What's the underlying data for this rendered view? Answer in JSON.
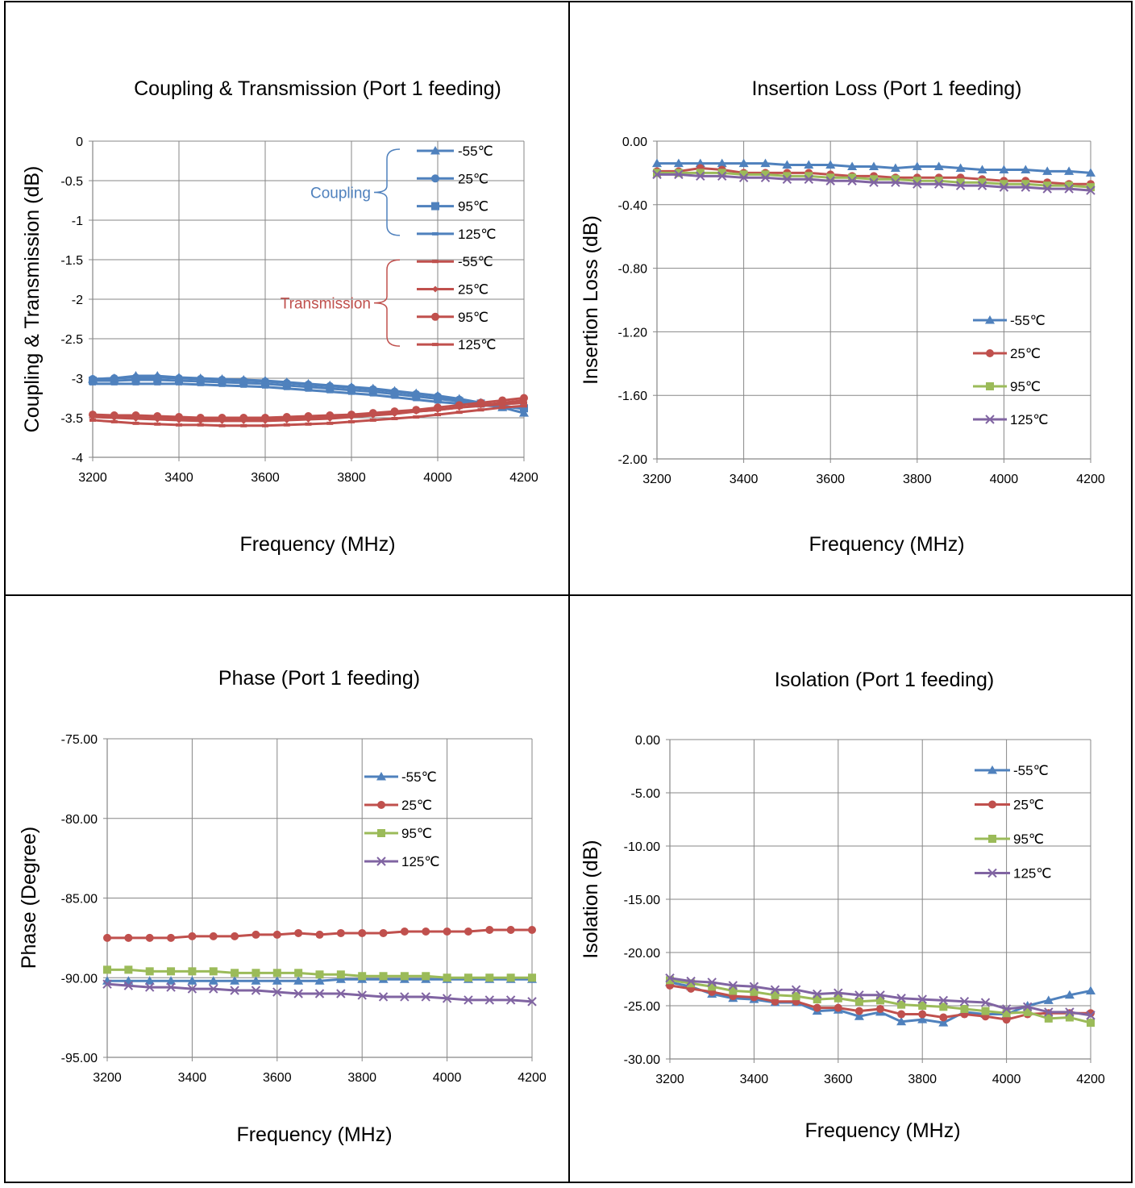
{
  "chart_data": [
    {
      "type": "line",
      "title": "Coupling & Transmission (Port 1 feeding)",
      "xlabel": "Frequency (MHz)",
      "ylabel": "Coupling & Transmission (dB)",
      "xlim": [
        3200,
        4200
      ],
      "ylim": [
        -4,
        0
      ],
      "xticks": [
        3200,
        3400,
        3600,
        3800,
        4000,
        4200
      ],
      "yticks": [
        0,
        -0.5,
        -1,
        -1.5,
        -2,
        -2.5,
        -3,
        -3.5,
        -4
      ],
      "ytick_decimals": -1,
      "grid": true,
      "legend_position": "top-right",
      "x": [
        3200,
        3250,
        3300,
        3350,
        3400,
        3450,
        3500,
        3550,
        3600,
        3650,
        3700,
        3750,
        3800,
        3850,
        3900,
        3950,
        4000,
        4050,
        4100,
        4150,
        4200
      ],
      "legend_groups": [
        {
          "label": "Coupling",
          "color": "#4F81BD",
          "series_indices": [
            0,
            1,
            2,
            3
          ]
        },
        {
          "label": "Transmission",
          "color": "#C0504D",
          "series_indices": [
            4,
            5,
            6,
            7
          ]
        }
      ],
      "series": [
        {
          "name": "-55℃",
          "color": "#4F81BD",
          "marker": "triangle",
          "values": [
            -3.01,
            -3.0,
            -2.97,
            -2.97,
            -2.99,
            -3.0,
            -3.01,
            -3.02,
            -3.03,
            -3.05,
            -3.07,
            -3.09,
            -3.11,
            -3.13,
            -3.16,
            -3.19,
            -3.22,
            -3.26,
            -3.31,
            -3.37,
            -3.44
          ]
        },
        {
          "name": "25℃",
          "color": "#4F81BD",
          "marker": "circle",
          "values": [
            -3.01,
            -3.0,
            -2.99,
            -2.99,
            -3.0,
            -3.01,
            -3.02,
            -3.03,
            -3.04,
            -3.06,
            -3.08,
            -3.1,
            -3.12,
            -3.14,
            -3.17,
            -3.2,
            -3.23,
            -3.27,
            -3.31,
            -3.35,
            -3.39
          ]
        },
        {
          "name": "95℃",
          "color": "#4F81BD",
          "marker": "square",
          "values": [
            -3.03,
            -3.03,
            -3.02,
            -3.02,
            -3.03,
            -3.04,
            -3.05,
            -3.06,
            -3.07,
            -3.09,
            -3.11,
            -3.13,
            -3.15,
            -3.17,
            -3.2,
            -3.23,
            -3.26,
            -3.29,
            -3.32,
            -3.35,
            -3.38
          ]
        },
        {
          "name": "125℃",
          "color": "#4F81BD",
          "marker": "dash",
          "values": [
            -3.07,
            -3.07,
            -3.07,
            -3.07,
            -3.07,
            -3.08,
            -3.09,
            -3.1,
            -3.11,
            -3.13,
            -3.15,
            -3.17,
            -3.19,
            -3.21,
            -3.24,
            -3.27,
            -3.3,
            -3.32,
            -3.34,
            -3.36,
            -3.38
          ]
        },
        {
          "name": "-55℃",
          "color": "#C0504D",
          "marker": "dash",
          "values": [
            -3.53,
            -3.55,
            -3.57,
            -3.58,
            -3.59,
            -3.59,
            -3.6,
            -3.6,
            -3.6,
            -3.59,
            -3.58,
            -3.57,
            -3.55,
            -3.53,
            -3.51,
            -3.49,
            -3.46,
            -3.43,
            -3.4,
            -3.37,
            -3.35
          ]
        },
        {
          "name": "25℃",
          "color": "#C0504D",
          "marker": "diamond",
          "values": [
            -3.49,
            -3.5,
            -3.51,
            -3.52,
            -3.53,
            -3.54,
            -3.54,
            -3.54,
            -3.54,
            -3.53,
            -3.52,
            -3.51,
            -3.49,
            -3.47,
            -3.45,
            -3.42,
            -3.4,
            -3.37,
            -3.34,
            -3.31,
            -3.28
          ]
        },
        {
          "name": "95℃",
          "color": "#C0504D",
          "marker": "circle",
          "values": [
            -3.46,
            -3.47,
            -3.47,
            -3.48,
            -3.49,
            -3.5,
            -3.5,
            -3.5,
            -3.5,
            -3.49,
            -3.48,
            -3.47,
            -3.46,
            -3.44,
            -3.42,
            -3.4,
            -3.37,
            -3.34,
            -3.31,
            -3.28,
            -3.25
          ]
        },
        {
          "name": "125℃",
          "color": "#C0504D",
          "marker": "dash",
          "values": [
            -3.48,
            -3.49,
            -3.49,
            -3.5,
            -3.51,
            -3.51,
            -3.52,
            -3.52,
            -3.52,
            -3.51,
            -3.5,
            -3.49,
            -3.48,
            -3.46,
            -3.44,
            -3.42,
            -3.4,
            -3.37,
            -3.35,
            -3.33,
            -3.31
          ]
        }
      ]
    },
    {
      "type": "line",
      "title": "Insertion Loss (Port 1 feeding)",
      "xlabel": "Frequency (MHz)",
      "ylabel": "Insertion Loss (dB)",
      "xlim": [
        3200,
        4200
      ],
      "ylim": [
        -2,
        0
      ],
      "xticks": [
        3200,
        3400,
        3600,
        3800,
        4000,
        4200
      ],
      "yticks": [
        0,
        -0.4,
        -0.8,
        -1.2,
        -1.6,
        -2
      ],
      "ytick_decimals": 2,
      "grid": true,
      "legend_position": "right",
      "x": [
        3200,
        3250,
        3300,
        3350,
        3400,
        3450,
        3500,
        3550,
        3600,
        3650,
        3700,
        3750,
        3800,
        3850,
        3900,
        3950,
        4000,
        4050,
        4100,
        4150,
        4200
      ],
      "series": [
        {
          "name": "-55℃",
          "color": "#4F81BD",
          "marker": "triangle",
          "values": [
            -0.14,
            -0.14,
            -0.14,
            -0.14,
            -0.14,
            -0.14,
            -0.15,
            -0.15,
            -0.15,
            -0.16,
            -0.16,
            -0.17,
            -0.16,
            -0.16,
            -0.17,
            -0.18,
            -0.18,
            -0.18,
            -0.19,
            -0.19,
            -0.2
          ]
        },
        {
          "name": "25℃",
          "color": "#C0504D",
          "marker": "circle",
          "values": [
            -0.19,
            -0.19,
            -0.17,
            -0.18,
            -0.2,
            -0.2,
            -0.2,
            -0.2,
            -0.21,
            -0.22,
            -0.22,
            -0.23,
            -0.23,
            -0.23,
            -0.23,
            -0.24,
            -0.25,
            -0.25,
            -0.26,
            -0.27,
            -0.27
          ]
        },
        {
          "name": "95℃",
          "color": "#9BBB59",
          "marker": "square",
          "values": [
            -0.2,
            -0.2,
            -0.2,
            -0.2,
            -0.21,
            -0.21,
            -0.22,
            -0.22,
            -0.23,
            -0.23,
            -0.24,
            -0.24,
            -0.25,
            -0.25,
            -0.26,
            -0.26,
            -0.27,
            -0.27,
            -0.28,
            -0.28,
            -0.29
          ]
        },
        {
          "name": "125℃",
          "color": "#8064A2",
          "marker": "x",
          "values": [
            -0.21,
            -0.21,
            -0.22,
            -0.22,
            -0.23,
            -0.23,
            -0.24,
            -0.24,
            -0.25,
            -0.25,
            -0.26,
            -0.26,
            -0.27,
            -0.27,
            -0.28,
            -0.28,
            -0.29,
            -0.29,
            -0.3,
            -0.3,
            -0.31
          ]
        }
      ]
    },
    {
      "type": "line",
      "title": "Phase (Port 1 feeding)",
      "xlabel": "Frequency (MHz)",
      "ylabel": "Phase (Degree)",
      "xlim": [
        3200,
        4200
      ],
      "ylim": [
        -95,
        -75
      ],
      "xticks": [
        3200,
        3400,
        3600,
        3800,
        4000,
        4200
      ],
      "yticks": [
        -75,
        -80,
        -85,
        -90,
        -95
      ],
      "ytick_decimals": 2,
      "grid": true,
      "legend_position": "top-right",
      "x": [
        3200,
        3250,
        3300,
        3350,
        3400,
        3450,
        3500,
        3550,
        3600,
        3650,
        3700,
        3750,
        3800,
        3850,
        3900,
        3950,
        4000,
        4050,
        4100,
        4150,
        4200
      ],
      "series": [
        {
          "name": "-55℃",
          "color": "#4F81BD",
          "marker": "triangle",
          "values": [
            -90.2,
            -90.2,
            -90.2,
            -90.2,
            -90.2,
            -90.2,
            -90.2,
            -90.2,
            -90.2,
            -90.2,
            -90.2,
            -90.1,
            -90.1,
            -90.1,
            -90.1,
            -90.1,
            -90.1,
            -90.1,
            -90.1,
            -90.1,
            -90.1
          ]
        },
        {
          "name": "25℃",
          "color": "#C0504D",
          "marker": "circle",
          "values": [
            -87.5,
            -87.5,
            -87.5,
            -87.5,
            -87.4,
            -87.4,
            -87.4,
            -87.3,
            -87.3,
            -87.2,
            -87.3,
            -87.2,
            -87.2,
            -87.2,
            -87.1,
            -87.1,
            -87.1,
            -87.1,
            -87.0,
            -87.0,
            -87.0
          ]
        },
        {
          "name": "95℃",
          "color": "#9BBB59",
          "marker": "square",
          "values": [
            -89.5,
            -89.5,
            -89.6,
            -89.6,
            -89.6,
            -89.6,
            -89.7,
            -89.7,
            -89.7,
            -89.7,
            -89.8,
            -89.8,
            -89.9,
            -89.9,
            -89.9,
            -89.9,
            -90.0,
            -90.0,
            -90.0,
            -90.0,
            -90.0
          ]
        },
        {
          "name": "125℃",
          "color": "#8064A2",
          "marker": "x",
          "values": [
            -90.4,
            -90.5,
            -90.6,
            -90.6,
            -90.7,
            -90.7,
            -90.8,
            -90.8,
            -90.9,
            -91.0,
            -91.0,
            -91.0,
            -91.1,
            -91.2,
            -91.2,
            -91.2,
            -91.3,
            -91.4,
            -91.4,
            -91.4,
            -91.5
          ]
        }
      ]
    },
    {
      "type": "line",
      "title": "Isolation (Port 1 feeding)",
      "xlabel": "Frequency (MHz)",
      "ylabel": "Isolation (dB)",
      "xlim": [
        3200,
        4200
      ],
      "ylim": [
        -30,
        0
      ],
      "xticks": [
        3200,
        3400,
        3600,
        3800,
        4000,
        4200
      ],
      "yticks": [
        0,
        -5,
        -10,
        -15,
        -20,
        -25,
        -30
      ],
      "ytick_decimals": 2,
      "grid": true,
      "legend_position": "top-right",
      "x": [
        3200,
        3250,
        3300,
        3350,
        3400,
        3450,
        3500,
        3550,
        3600,
        3650,
        3700,
        3750,
        3800,
        3850,
        3900,
        3950,
        4000,
        4050,
        4100,
        4150,
        4200
      ],
      "series": [
        {
          "name": "-55℃",
          "color": "#4F81BD",
          "marker": "triangle",
          "values": [
            -22.8,
            -23.2,
            -23.9,
            -24.3,
            -24.4,
            -24.7,
            -24.7,
            -25.5,
            -25.4,
            -26.0,
            -25.6,
            -26.5,
            -26.3,
            -26.6,
            -25.6,
            -25.8,
            -25.8,
            -25.0,
            -24.5,
            -24.0,
            -23.6
          ]
        },
        {
          "name": "25℃",
          "color": "#C0504D",
          "marker": "circle",
          "values": [
            -23.1,
            -23.4,
            -23.7,
            -24.1,
            -24.2,
            -24.6,
            -24.6,
            -25.2,
            -25.2,
            -25.5,
            -25.3,
            -25.8,
            -25.8,
            -26.1,
            -25.8,
            -26.0,
            -26.3,
            -25.8,
            -25.7,
            -25.7,
            -25.7
          ]
        },
        {
          "name": "95℃",
          "color": "#9BBB59",
          "marker": "square",
          "values": [
            -22.6,
            -22.9,
            -23.2,
            -23.6,
            -23.7,
            -24.0,
            -24.1,
            -24.4,
            -24.3,
            -24.6,
            -24.5,
            -24.9,
            -25.0,
            -25.1,
            -25.3,
            -25.5,
            -25.7,
            -25.6,
            -26.2,
            -26.1,
            -26.6
          ]
        },
        {
          "name": "125℃",
          "color": "#8064A2",
          "marker": "x",
          "values": [
            -22.4,
            -22.7,
            -22.8,
            -23.1,
            -23.2,
            -23.5,
            -23.5,
            -23.9,
            -23.8,
            -24.0,
            -24.0,
            -24.3,
            -24.4,
            -24.5,
            -24.6,
            -24.7,
            -25.3,
            -25.1,
            -25.6,
            -25.6,
            -25.9
          ]
        }
      ]
    }
  ]
}
